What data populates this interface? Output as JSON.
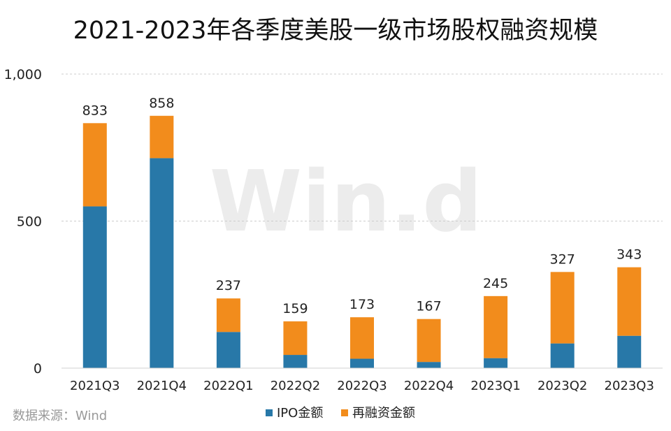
{
  "chart_data": {
    "type": "bar",
    "stacked": true,
    "title": "2021-2023年各季度美股一级市场股权融资规模",
    "categories": [
      "2021Q3",
      "2021Q4",
      "2022Q1",
      "2022Q2",
      "2022Q3",
      "2022Q4",
      "2023Q1",
      "2023Q2",
      "2023Q3"
    ],
    "series": [
      {
        "name": "IPO金额",
        "color": "#2878a8",
        "values": [
          550,
          714,
          123,
          45,
          32,
          21,
          34,
          84,
          110
        ]
      },
      {
        "name": "再融资金额",
        "color": "#f28c1c",
        "values": [
          283,
          144,
          114,
          114,
          141,
          146,
          211,
          243,
          233
        ]
      }
    ],
    "totals": [
      "833",
      "858",
      "237",
      "159",
      "173",
      "167",
      "245",
      "327",
      "343"
    ],
    "ylim": [
      0,
      1000
    ],
    "yticks": [
      0,
      500,
      1000
    ],
    "ytick_labels": [
      "0",
      "500",
      "1,000"
    ],
    "grid": true,
    "legend_position": "bottom",
    "xlabel": "",
    "ylabel": ""
  },
  "source": "数据来源：Wind",
  "watermark": "Win.d"
}
